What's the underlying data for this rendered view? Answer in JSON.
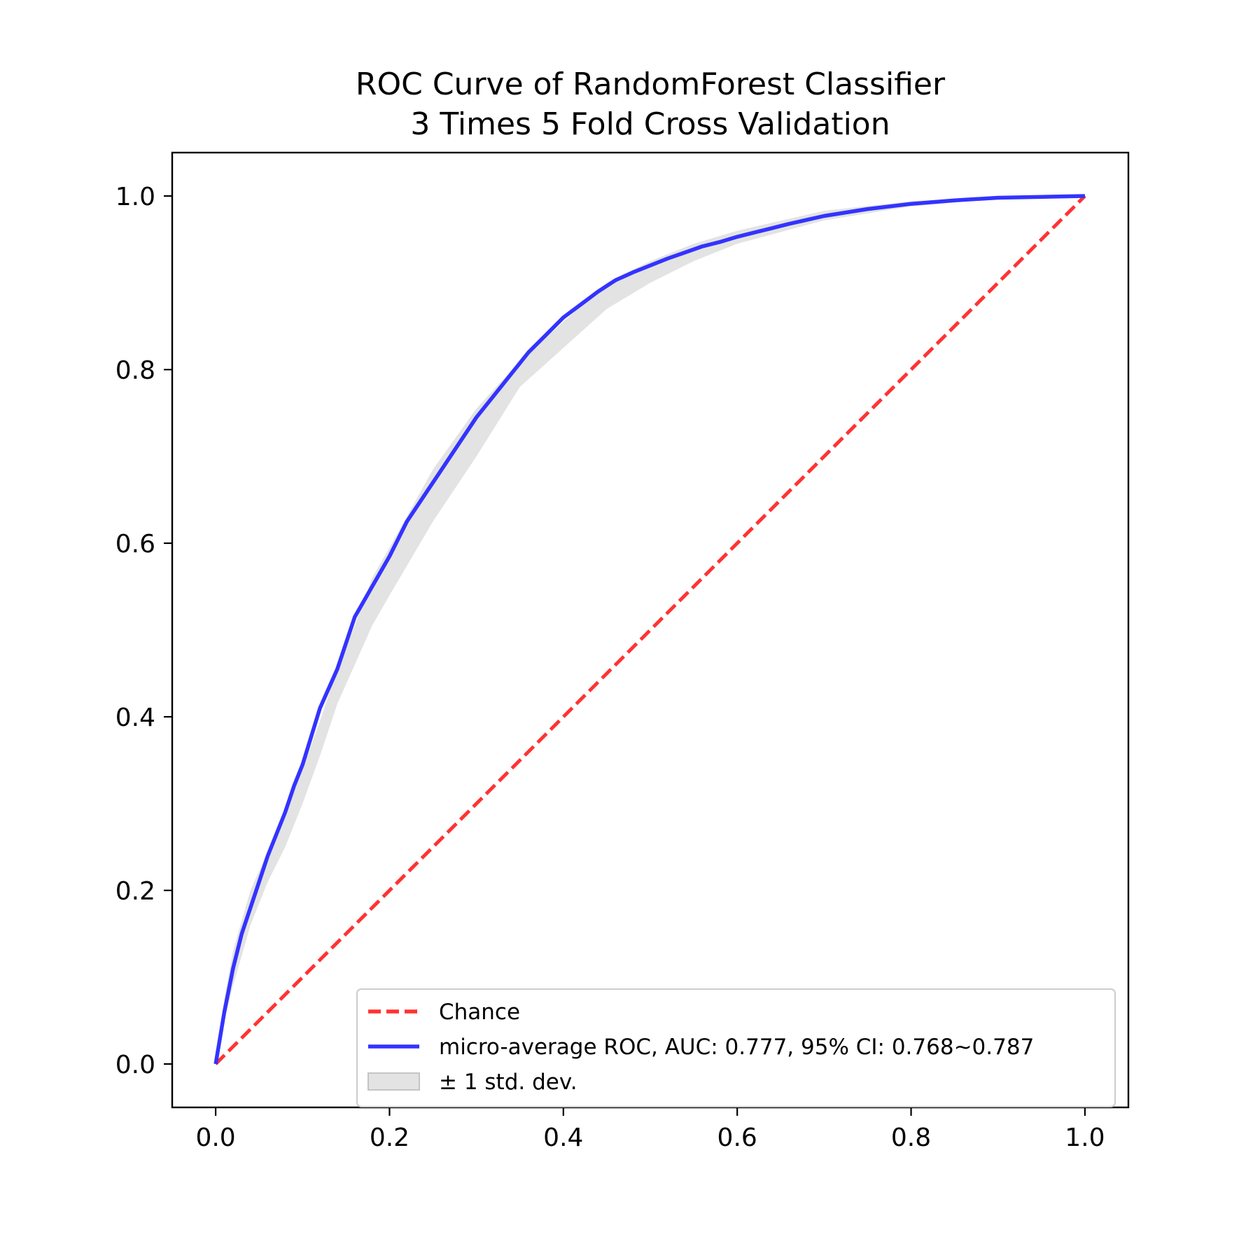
{
  "chart_data": {
    "type": "line",
    "title_lines": [
      "ROC Curve of RandomForest Classifier",
      "3 Times 5 Fold Cross Validation"
    ],
    "xlabel": "",
    "ylabel": "",
    "xlim": [
      -0.05,
      1.05
    ],
    "ylim": [
      -0.05,
      1.05
    ],
    "x_ticks": [
      "0.0",
      "0.2",
      "0.4",
      "0.6",
      "0.8",
      "1.0"
    ],
    "y_ticks": [
      "0.0",
      "0.2",
      "0.4",
      "0.6",
      "0.8",
      "1.0"
    ],
    "grid": false,
    "legend_position": "lower-right",
    "series": [
      {
        "name": "Chance",
        "style": "dashed",
        "color": "#ff3333",
        "x": [
          0,
          1
        ],
        "y": [
          0,
          1
        ]
      },
      {
        "name": "micro-average ROC, AUC: 0.777, 95% CI: 0.768~0.787",
        "style": "solid",
        "color": "#3333ff",
        "x": [
          0,
          0.005,
          0.01,
          0.02,
          0.03,
          0.04,
          0.05,
          0.06,
          0.07,
          0.08,
          0.09,
          0.1,
          0.12,
          0.14,
          0.16,
          0.18,
          0.2,
          0.22,
          0.24,
          0.26,
          0.28,
          0.3,
          0.32,
          0.34,
          0.36,
          0.38,
          0.4,
          0.42,
          0.44,
          0.46,
          0.48,
          0.5,
          0.52,
          0.54,
          0.56,
          0.58,
          0.6,
          0.62,
          0.64,
          0.66,
          0.7,
          0.75,
          0.8,
          0.85,
          0.9,
          0.95,
          1.0
        ],
        "y": [
          0,
          0.03,
          0.06,
          0.11,
          0.15,
          0.18,
          0.21,
          0.24,
          0.265,
          0.29,
          0.32,
          0.345,
          0.41,
          0.455,
          0.515,
          0.55,
          0.585,
          0.625,
          0.655,
          0.685,
          0.715,
          0.745,
          0.77,
          0.795,
          0.82,
          0.84,
          0.86,
          0.875,
          0.89,
          0.903,
          0.912,
          0.92,
          0.928,
          0.935,
          0.942,
          0.947,
          0.953,
          0.958,
          0.963,
          0.968,
          0.977,
          0.985,
          0.991,
          0.995,
          0.998,
          0.999,
          1.0
        ]
      }
    ],
    "band": {
      "name": "± 1 std. dev.",
      "color": "#cccccc",
      "x": [
        0,
        0.01,
        0.02,
        0.04,
        0.06,
        0.08,
        0.1,
        0.12,
        0.14,
        0.16,
        0.18,
        0.2,
        0.25,
        0.3,
        0.35,
        0.4,
        0.45,
        0.5,
        0.55,
        0.6,
        0.7,
        0.8,
        0.9,
        1.0
      ],
      "lower": [
        0,
        0.05,
        0.09,
        0.16,
        0.21,
        0.25,
        0.3,
        0.355,
        0.415,
        0.46,
        0.505,
        0.54,
        0.625,
        0.7,
        0.78,
        0.825,
        0.87,
        0.9,
        0.925,
        0.945,
        0.972,
        0.988,
        0.997,
        1.0
      ],
      "upper": [
        0,
        0.075,
        0.13,
        0.2,
        0.245,
        0.29,
        0.34,
        0.395,
        0.455,
        0.505,
        0.56,
        0.595,
        0.685,
        0.755,
        0.81,
        0.855,
        0.9,
        0.925,
        0.945,
        0.96,
        0.983,
        0.994,
        0.999,
        1.0
      ]
    },
    "legend": [
      {
        "label": "Chance",
        "kind": "dashed",
        "color": "#ff3333"
      },
      {
        "label": "micro-average ROC, AUC: 0.777, 95% CI: 0.768~0.787",
        "kind": "solid",
        "color": "#3333ff"
      },
      {
        "label": "± 1 std. dev.",
        "kind": "patch",
        "color": "#cccccc"
      }
    ]
  }
}
